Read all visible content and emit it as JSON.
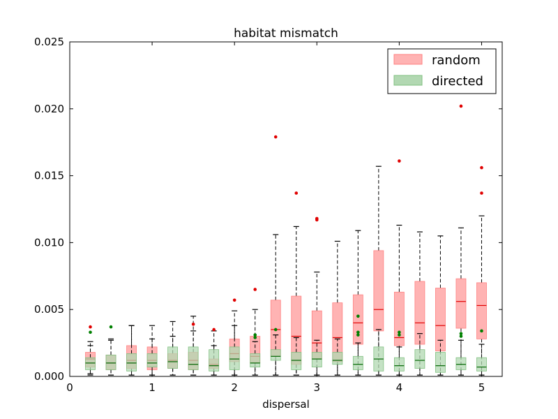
{
  "chart_data": {
    "type": "boxplot",
    "title": "habitat mismatch",
    "xlabel": "dispersal",
    "ylabel": "",
    "xlim": [
      0,
      5.25
    ],
    "ylim": [
      0,
      0.025
    ],
    "xticks": [
      0,
      1,
      2,
      3,
      4,
      5
    ],
    "xtick_labels": [
      "0",
      "1",
      "2",
      "3",
      "4",
      "5"
    ],
    "yticks": [
      0,
      0.005,
      0.01,
      0.015,
      0.02,
      0.025
    ],
    "ytick_labels": [
      "0.000",
      "0.005",
      "0.010",
      "0.015",
      "0.020",
      "0.025"
    ],
    "grid": false,
    "legend": {
      "position": "top-right",
      "entries": [
        "random",
        "directed"
      ]
    },
    "colors": {
      "random_fill": "#ffb3b3",
      "random_edge": "#ff8080",
      "random_median": "#e00000",
      "random_flier": "#e00000",
      "directed_fill": "#b2d8b2",
      "directed_edge": "#80c080",
      "directed_median": "#006400",
      "directed_flier": "#008000"
    },
    "series": [
      {
        "name": "random",
        "boxes": [
          {
            "x": 0.25,
            "whislo": 0.0002,
            "q1": 0.0007,
            "med": 0.0013,
            "q3": 0.0018,
            "whishi": 0.0026,
            "fliers": [
              0.0037
            ]
          },
          {
            "x": 0.5,
            "whislo": 0.0001,
            "q1": 0.0005,
            "med": 0.001,
            "q3": 0.0016,
            "whishi": 0.0028,
            "fliers": []
          },
          {
            "x": 0.75,
            "whislo": 0.0001,
            "q1": 0.0006,
            "med": 0.0012,
            "q3": 0.0023,
            "whishi": 0.0038,
            "fliers": []
          },
          {
            "x": 1.0,
            "whislo": 0.0001,
            "q1": 0.0005,
            "med": 0.0012,
            "q3": 0.0022,
            "whishi": 0.0038,
            "fliers": []
          },
          {
            "x": 1.25,
            "whislo": 0.0001,
            "q1": 0.0006,
            "med": 0.0012,
            "q3": 0.0017,
            "whishi": 0.0041,
            "fliers": []
          },
          {
            "x": 1.5,
            "whislo": 0.0001,
            "q1": 0.0005,
            "med": 0.0012,
            "q3": 0.0018,
            "whishi": 0.0045,
            "fliers": [
              0.0039
            ]
          },
          {
            "x": 1.75,
            "whislo": 0.0001,
            "q1": 0.0006,
            "med": 0.0009,
            "q3": 0.0013,
            "whishi": 0.0034,
            "fliers": [
              0.0035
            ]
          },
          {
            "x": 2.0,
            "whislo": 0.0001,
            "q1": 0.0011,
            "med": 0.0017,
            "q3": 0.0028,
            "whishi": 0.0049,
            "fliers": [
              0.0057
            ]
          },
          {
            "x": 2.25,
            "whislo": 0.0001,
            "q1": 0.001,
            "med": 0.0015,
            "q3": 0.003,
            "whishi": 0.005,
            "fliers": [
              0.0065
            ]
          },
          {
            "x": 2.5,
            "whislo": 0.0001,
            "q1": 0.0015,
            "med": 0.0035,
            "q3": 0.0057,
            "whishi": 0.0106,
            "fliers": [
              0.0179
            ]
          },
          {
            "x": 2.75,
            "whislo": 0.0001,
            "q1": 0.0009,
            "med": 0.003,
            "q3": 0.006,
            "whishi": 0.0112,
            "fliers": [
              0.0137
            ]
          },
          {
            "x": 3.0,
            "whislo": 0.0001,
            "q1": 0.0013,
            "med": 0.0025,
            "q3": 0.0049,
            "whishi": 0.0078,
            "fliers": [
              0.0118,
              0.0117
            ]
          },
          {
            "x": 3.25,
            "whislo": 0.0001,
            "q1": 0.0011,
            "med": 0.0029,
            "q3": 0.0055,
            "whishi": 0.0101,
            "fliers": []
          },
          {
            "x": 3.5,
            "whislo": 0.0001,
            "q1": 0.0024,
            "med": 0.004,
            "q3": 0.0061,
            "whishi": 0.0109,
            "fliers": []
          },
          {
            "x": 3.75,
            "whislo": 0.0001,
            "q1": 0.0034,
            "med": 0.005,
            "q3": 0.0094,
            "whishi": 0.0157,
            "fliers": []
          },
          {
            "x": 4.0,
            "whislo": 0.0001,
            "q1": 0.0023,
            "med": 0.0029,
            "q3": 0.0063,
            "whishi": 0.0113,
            "fliers": [
              0.0161
            ]
          },
          {
            "x": 4.25,
            "whislo": 0.0001,
            "q1": 0.0024,
            "med": 0.004,
            "q3": 0.0071,
            "whishi": 0.0108,
            "fliers": []
          },
          {
            "x": 4.5,
            "whislo": 0.0001,
            "q1": 0.0019,
            "med": 0.0038,
            "q3": 0.0066,
            "whishi": 0.0105,
            "fliers": []
          },
          {
            "x": 4.75,
            "whislo": 0.0001,
            "q1": 0.0036,
            "med": 0.0056,
            "q3": 0.0073,
            "whishi": 0.0111,
            "fliers": [
              0.0202
            ]
          },
          {
            "x": 5.0,
            "whislo": 0.0001,
            "q1": 0.0028,
            "med": 0.0053,
            "q3": 0.007,
            "whishi": 0.012,
            "fliers": [
              0.0156,
              0.0137
            ]
          }
        ]
      },
      {
        "name": "directed",
        "boxes": [
          {
            "x": 0.25,
            "whislo": 0.0001,
            "q1": 0.0005,
            "med": 0.001,
            "q3": 0.0014,
            "whishi": 0.0023,
            "fliers": [
              0.0033
            ]
          },
          {
            "x": 0.5,
            "whislo": 0.0001,
            "q1": 0.0005,
            "med": 0.001,
            "q3": 0.0016,
            "whishi": 0.0027,
            "fliers": [
              0.0037
            ]
          },
          {
            "x": 0.75,
            "whislo": 0.0001,
            "q1": 0.0004,
            "med": 0.001,
            "q3": 0.0017,
            "whishi": 0.0038,
            "fliers": []
          },
          {
            "x": 1.0,
            "whislo": 0.0001,
            "q1": 0.0007,
            "med": 0.001,
            "q3": 0.0017,
            "whishi": 0.0028,
            "fliers": []
          },
          {
            "x": 1.25,
            "whislo": 0.0001,
            "q1": 0.0006,
            "med": 0.0011,
            "q3": 0.0022,
            "whishi": 0.003,
            "fliers": []
          },
          {
            "x": 1.5,
            "whislo": 0.0001,
            "q1": 0.0005,
            "med": 0.0009,
            "q3": 0.0022,
            "whishi": 0.0034,
            "fliers": []
          },
          {
            "x": 1.75,
            "whislo": 0.0001,
            "q1": 0.0004,
            "med": 0.0008,
            "q3": 0.002,
            "whishi": 0.0023,
            "fliers": []
          },
          {
            "x": 2.0,
            "whislo": 0.0001,
            "q1": 0.0005,
            "med": 0.0013,
            "q3": 0.0022,
            "whishi": 0.0038,
            "fliers": []
          },
          {
            "x": 2.25,
            "whislo": 0.0001,
            "q1": 0.0007,
            "med": 0.001,
            "q3": 0.0017,
            "whishi": 0.0026,
            "fliers": [
              0.0031,
              0.0029
            ]
          },
          {
            "x": 2.5,
            "whislo": 0.0001,
            "q1": 0.0012,
            "med": 0.0015,
            "q3": 0.002,
            "whishi": 0.0031,
            "fliers": [
              0.0035
            ]
          },
          {
            "x": 2.75,
            "whislo": 0.0001,
            "q1": 0.0005,
            "med": 0.0012,
            "q3": 0.0018,
            "whishi": 0.0029,
            "fliers": []
          },
          {
            "x": 3.0,
            "whislo": 0.0001,
            "q1": 0.0007,
            "med": 0.0013,
            "q3": 0.0018,
            "whishi": 0.0027,
            "fliers": []
          },
          {
            "x": 3.25,
            "whislo": 0.0001,
            "q1": 0.0009,
            "med": 0.0012,
            "q3": 0.0018,
            "whishi": 0.0028,
            "fliers": []
          },
          {
            "x": 3.5,
            "whislo": 0.0001,
            "q1": 0.0005,
            "med": 0.0009,
            "q3": 0.0015,
            "whishi": 0.0025,
            "fliers": [
              0.0045,
              0.0033,
              0.0031
            ]
          },
          {
            "x": 3.75,
            "whislo": 0.0001,
            "q1": 0.0004,
            "med": 0.0013,
            "q3": 0.0022,
            "whishi": 0.0035,
            "fliers": []
          },
          {
            "x": 4.0,
            "whislo": 0.0001,
            "q1": 0.0004,
            "med": 0.0008,
            "q3": 0.0014,
            "whishi": 0.0022,
            "fliers": [
              0.0033,
              0.0031
            ]
          },
          {
            "x": 4.25,
            "whislo": 0.0001,
            "q1": 0.0006,
            "med": 0.0012,
            "q3": 0.002,
            "whishi": 0.0032,
            "fliers": []
          },
          {
            "x": 4.5,
            "whislo": 0.0001,
            "q1": 0.0003,
            "med": 0.0008,
            "q3": 0.0018,
            "whishi": 0.0027,
            "fliers": []
          },
          {
            "x": 4.75,
            "whislo": 0.0001,
            "q1": 0.0005,
            "med": 0.0009,
            "q3": 0.0014,
            "whishi": 0.0027,
            "fliers": [
              0.0032,
              0.003
            ]
          },
          {
            "x": 5.0,
            "whislo": 0.0001,
            "q1": 0.0004,
            "med": 0.0007,
            "q3": 0.0014,
            "whishi": 0.0024,
            "fliers": [
              0.0034
            ]
          }
        ]
      }
    ]
  }
}
